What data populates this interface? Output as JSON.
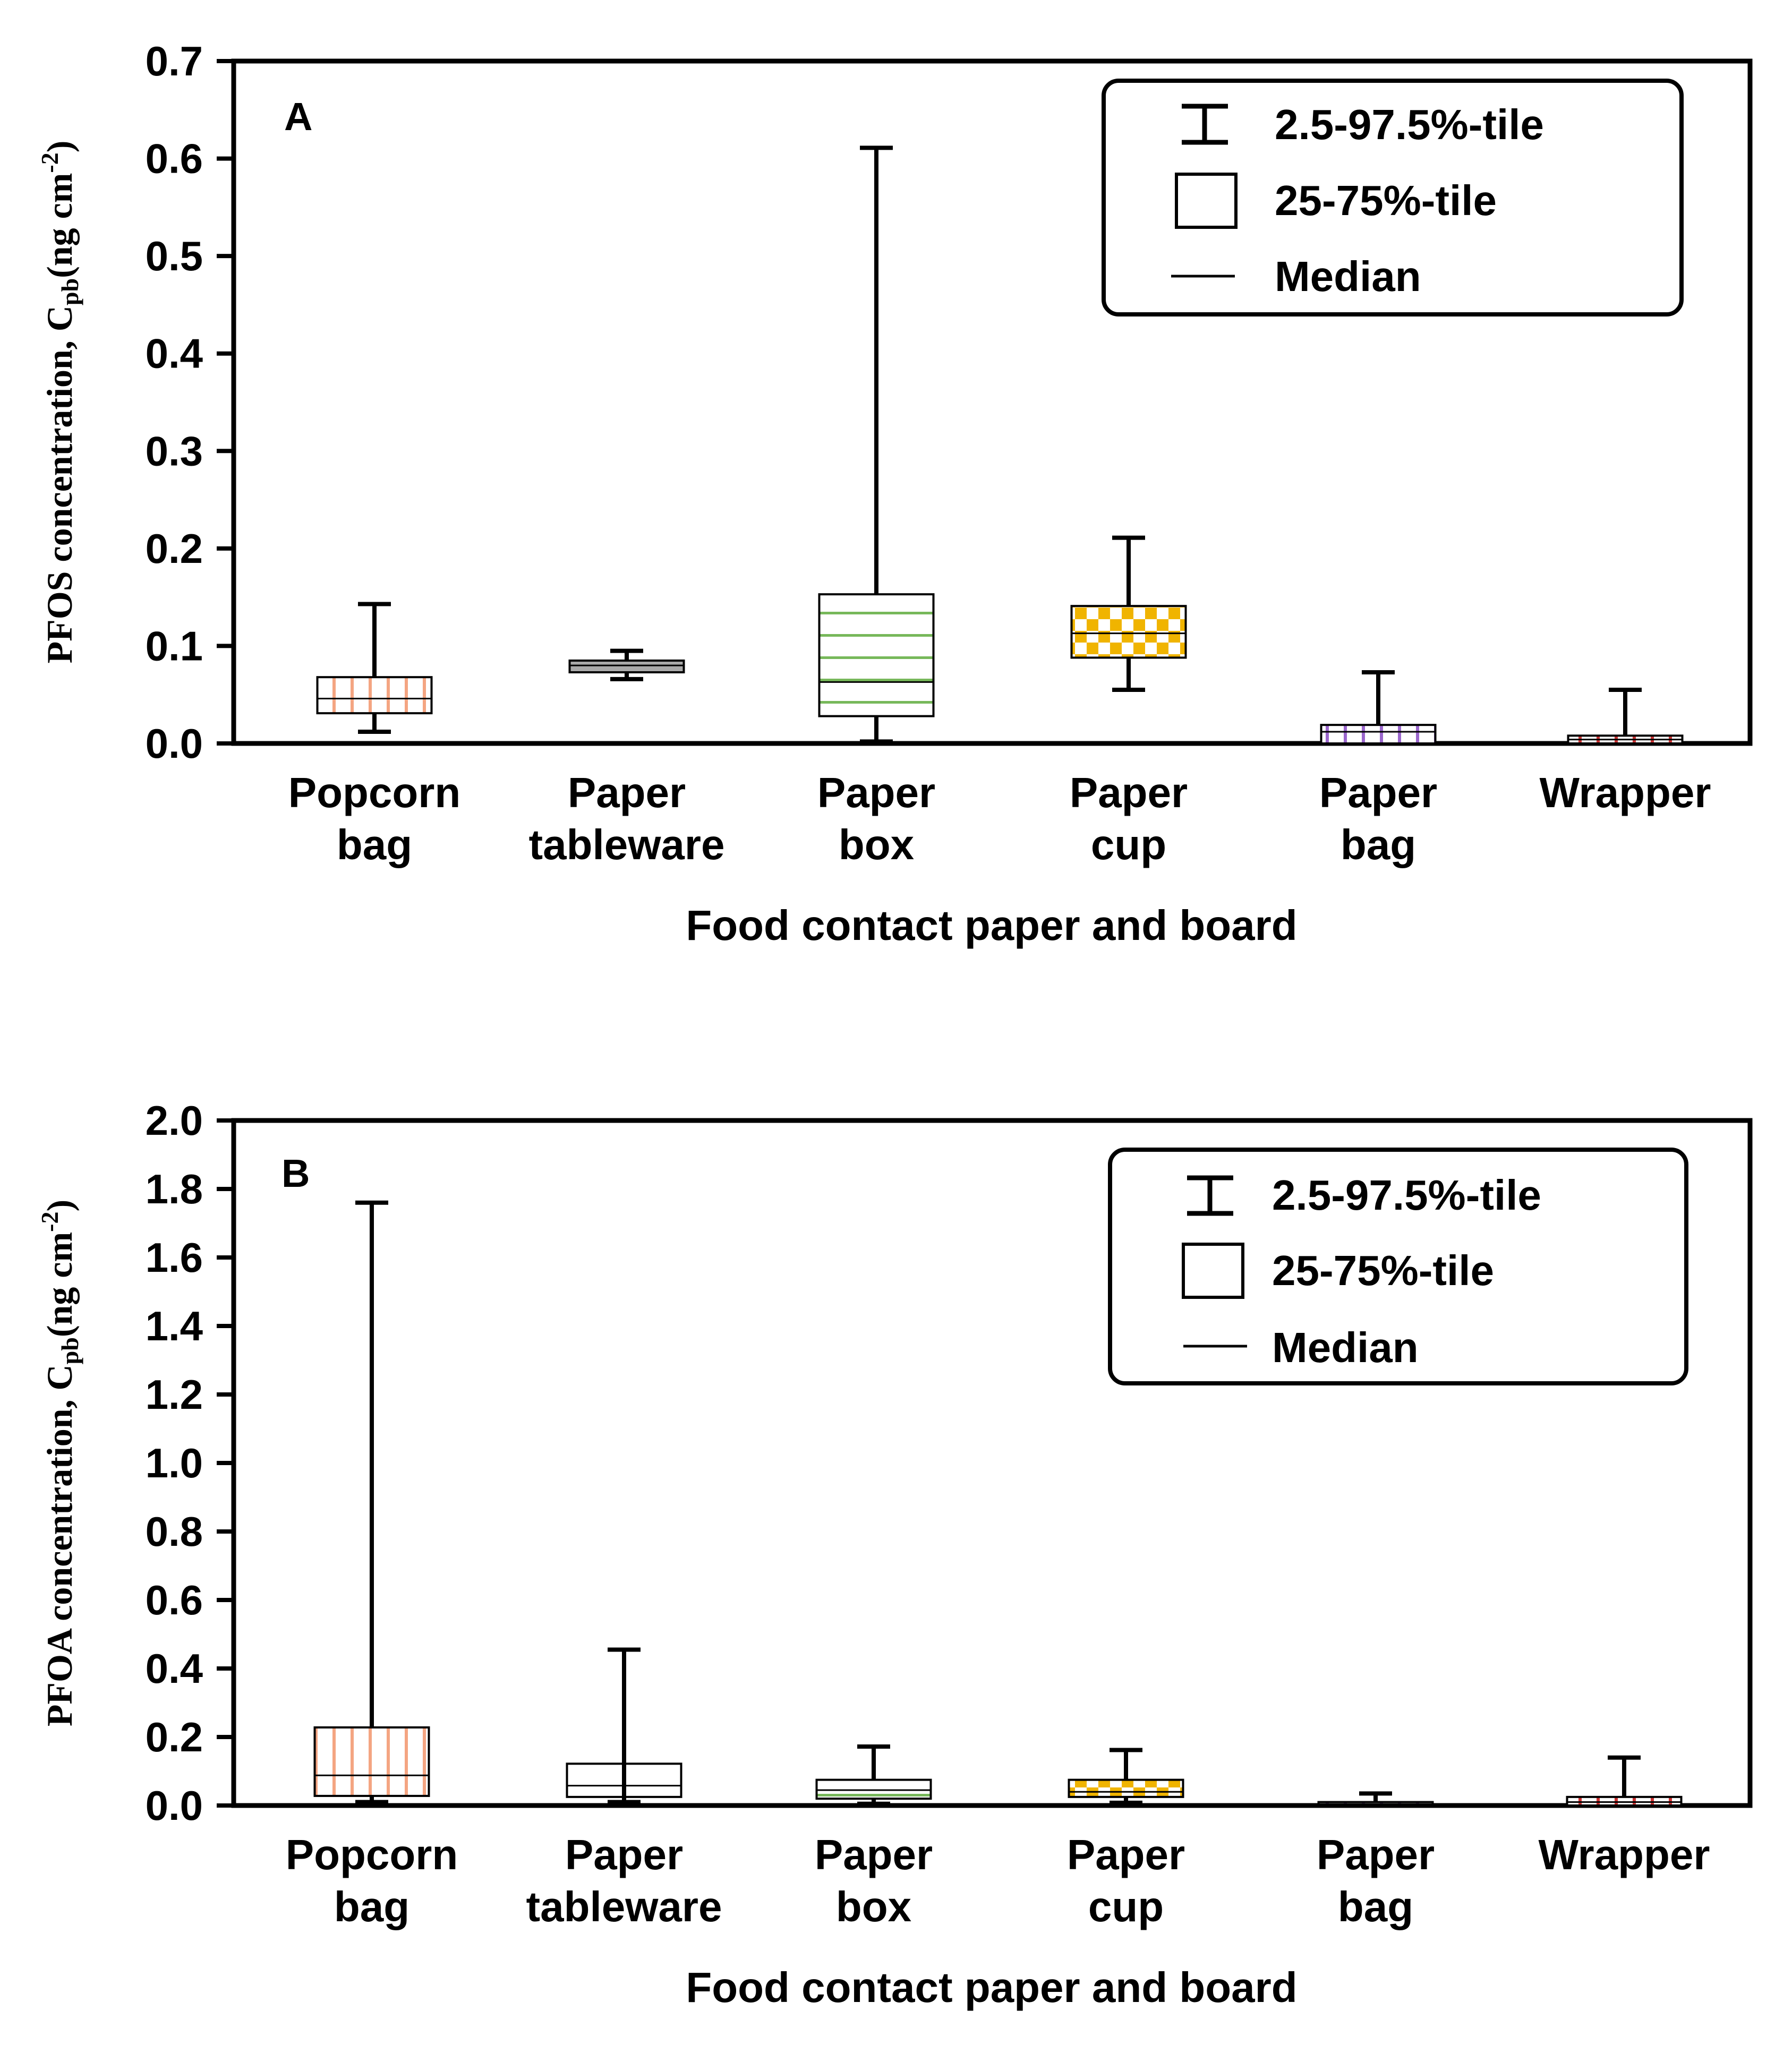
{
  "chart_data": [
    {
      "type": "box",
      "panel": "A",
      "ylabel": "PFOS concentration, C",
      "ylabel_sub": "pb",
      "ylabel_unit": "(ng cm",
      "ylabel_sup": "-2",
      "ylabel_close": ")",
      "xlabel": "Food contact paper and board",
      "ylim": [
        0,
        0.7
      ],
      "yticks": [
        "0.0",
        "0.1",
        "0.2",
        "0.3",
        "0.4",
        "0.5",
        "0.6",
        "0.7"
      ],
      "ytick_values": [
        0,
        0.1,
        0.2,
        0.3,
        0.4,
        0.5,
        0.6,
        0.7
      ],
      "legend": {
        "whisker": "2.5-97.5%-tile",
        "box": "25-75%-tile",
        "median": "Median"
      },
      "categories": [
        {
          "line1": "Popcorn",
          "line2": "bag",
          "low": 0.012,
          "q1": 0.031,
          "median": 0.046,
          "q3": 0.068,
          "high": 0.143,
          "color": "#f4a582",
          "pattern": "vertical"
        },
        {
          "line1": "Paper",
          "line2": "tableware",
          "low": 0.066,
          "q1": 0.073,
          "median": 0.08,
          "q3": 0.085,
          "high": 0.095,
          "color": "#a9a9a9",
          "pattern": "solid"
        },
        {
          "line1": "Paper",
          "line2": "box",
          "low": 0.002,
          "q1": 0.028,
          "median": 0.063,
          "q3": 0.153,
          "high": 0.611,
          "color": "#77b85a",
          "pattern": "horizontal"
        },
        {
          "line1": "Paper",
          "line2": "cup",
          "low": 0.055,
          "q1": 0.088,
          "median": 0.113,
          "q3": 0.141,
          "high": 0.211,
          "color": "#f0b400",
          "pattern": "checker"
        },
        {
          "line1": "Paper",
          "line2": "bag",
          "low": 0.0,
          "q1": 0.0,
          "median": 0.012,
          "q3": 0.019,
          "high": 0.073,
          "color": "#9a66cc",
          "pattern": "vertical"
        },
        {
          "line1": "Wrapper",
          "line2": "",
          "low": 0.0,
          "q1": 0.0,
          "median": 0.004,
          "q3": 0.008,
          "high": 0.055,
          "color": "#cc3333",
          "pattern": "vertical"
        }
      ]
    },
    {
      "type": "box",
      "panel": "B",
      "ylabel": "PFOA concentration, C",
      "ylabel_sub": "pb",
      "ylabel_unit": "(ng cm",
      "ylabel_sup": "-2",
      "ylabel_close": ")",
      "xlabel": "Food contact paper and board",
      "ylim": [
        0,
        2.0
      ],
      "yticks": [
        "0.0",
        "0.2",
        "0.4",
        "0.6",
        "0.8",
        "1.0",
        "1.2",
        "1.4",
        "1.6",
        "1.8",
        "2.0"
      ],
      "ytick_values": [
        0,
        0.2,
        0.4,
        0.6,
        0.8,
        1.0,
        1.2,
        1.4,
        1.6,
        1.8,
        2.0
      ],
      "legend": {
        "whisker": "2.5-97.5%-tile",
        "box": "25-75%-tile",
        "median": "Median"
      },
      "categories": [
        {
          "line1": "Popcorn",
          "line2": "bag",
          "low": 0.01,
          "q1": 0.028,
          "median": 0.088,
          "q3": 0.228,
          "high": 1.76,
          "color": "#f4a582",
          "pattern": "vertical"
        },
        {
          "line1": "Paper",
          "line2": "tableware",
          "low": 0.01,
          "q1": 0.025,
          "median": 0.058,
          "q3": 0.122,
          "high": 0.455,
          "color": "#a9a9a9",
          "pattern": "solid"
        },
        {
          "line1": "Paper",
          "line2": "box",
          "low": 0.005,
          "q1": 0.02,
          "median": 0.045,
          "q3": 0.075,
          "high": 0.172,
          "color": "#77b85a",
          "pattern": "horizontal"
        },
        {
          "line1": "Paper",
          "line2": "cup",
          "low": 0.008,
          "q1": 0.025,
          "median": 0.04,
          "q3": 0.075,
          "high": 0.162,
          "color": "#f0b400",
          "pattern": "checker"
        },
        {
          "line1": "Paper",
          "line2": "bag",
          "low": 0.0,
          "q1": 0.0,
          "median": 0.004,
          "q3": 0.01,
          "high": 0.035,
          "color": "#9a66cc",
          "pattern": "vertical"
        },
        {
          "line1": "Wrapper",
          "line2": "",
          "low": 0.0,
          "q1": 0.0,
          "median": 0.01,
          "q3": 0.025,
          "high": 0.14,
          "color": "#cc3333",
          "pattern": "vertical"
        }
      ]
    }
  ]
}
